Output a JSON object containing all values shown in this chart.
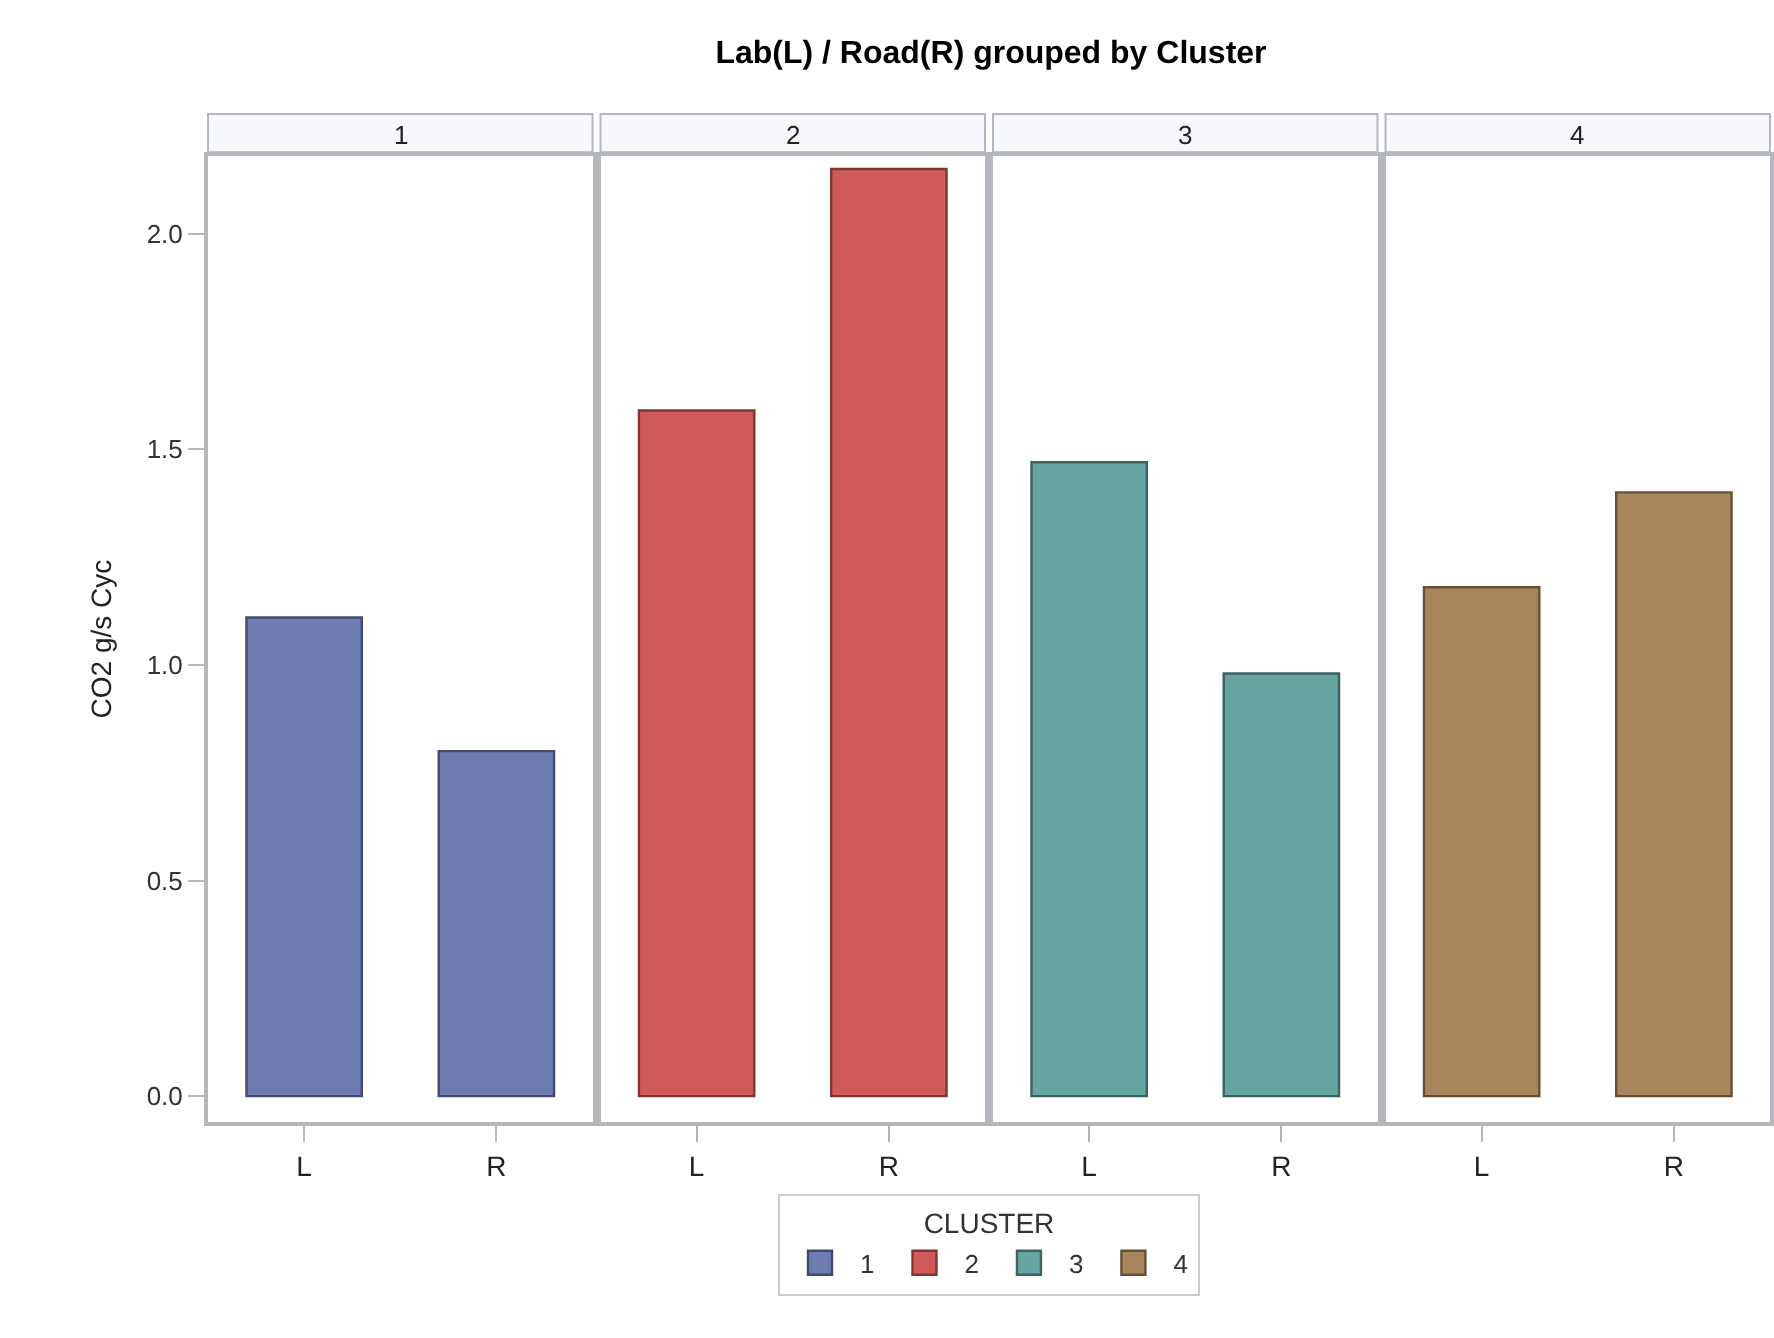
{
  "chart_data": {
    "type": "bar",
    "title": "Lab(L) / Road(R) grouped by Cluster",
    "ylabel": "CO2 g/s Cyc",
    "legend_title": "CLUSTER",
    "legend": "bottom",
    "categories": [
      "L",
      "R",
      "L",
      "R",
      "L",
      "R",
      "L",
      "R"
    ],
    "annotations": [
      "1",
      "2",
      "3",
      "4"
    ],
    "series": [
      {
        "name": "1",
        "color": "#6e7db1",
        "values": [
          1.11,
          0.8,
          null,
          null,
          null,
          null,
          null,
          null
        ]
      },
      {
        "name": "2",
        "color": "#d05a5a",
        "values": [
          null,
          null,
          1.59,
          2.15,
          null,
          null,
          null,
          null
        ]
      },
      {
        "name": "3",
        "color": "#67a5a0",
        "values": [
          null,
          null,
          null,
          null,
          1.47,
          0.98,
          null,
          null
        ]
      },
      {
        "name": "4",
        "color": "#a8855c",
        "values": [
          null,
          null,
          null,
          null,
          null,
          null,
          1.18,
          1.4
        ]
      }
    ],
    "ylim": [
      -0.06,
      2.18
    ],
    "yticks": [
      {
        "value": 0,
        "label": "0.0"
      },
      {
        "value": 0.5,
        "label": "0.5"
      },
      {
        "value": 1,
        "label": "1.0"
      },
      {
        "value": 1.5,
        "label": "1.5"
      },
      {
        "value": 2,
        "label": "2.0"
      }
    ]
  }
}
